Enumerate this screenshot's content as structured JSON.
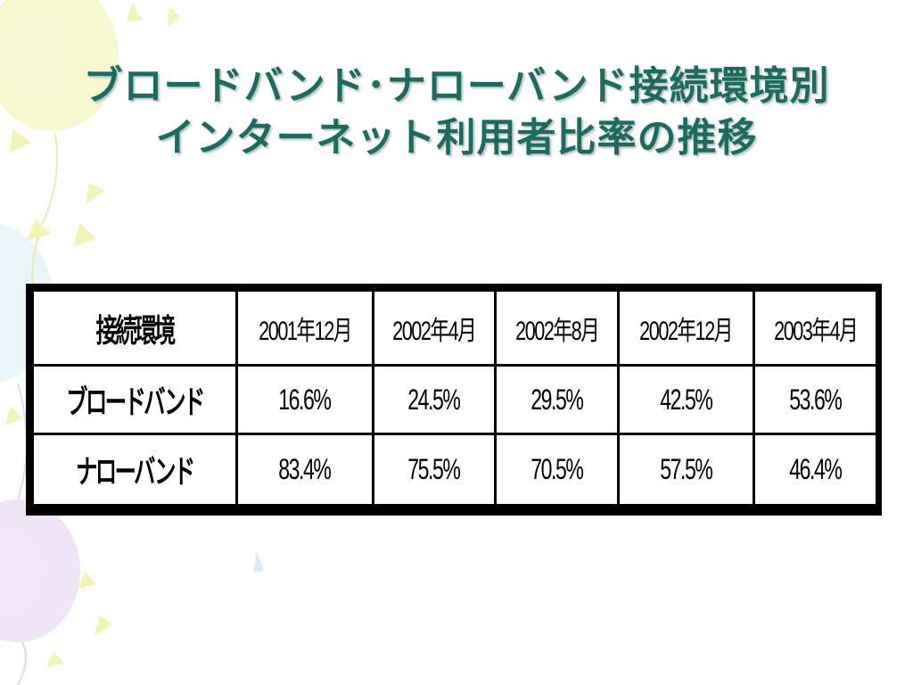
{
  "slide": {
    "title_line1": "ブロードバンド･ナローバンド接続環境別",
    "title_line2": "インターネット利用者比率の推移"
  },
  "table": {
    "corner_label": "接続環境",
    "columns": [
      "2001年12月",
      "2002年4月",
      "2002年8月",
      "2002年12月",
      "2003年4月"
    ],
    "rows": [
      {
        "label": "ブロードバンド",
        "values": [
          "16.6%",
          "24.5%",
          "29.5%",
          "42.5%",
          "53.6%"
        ]
      },
      {
        "label": "ナローバンド",
        "values": [
          "83.4%",
          "75.5%",
          "70.5%",
          "57.5%",
          "46.4%"
        ]
      }
    ]
  },
  "colors": {
    "title": "#1d6b5f",
    "table_border": "#000000",
    "balloon_yellow": "#eef3a6",
    "balloon_blue": "#d9ecf6",
    "balloon_purple": "#e6d3f2"
  }
}
